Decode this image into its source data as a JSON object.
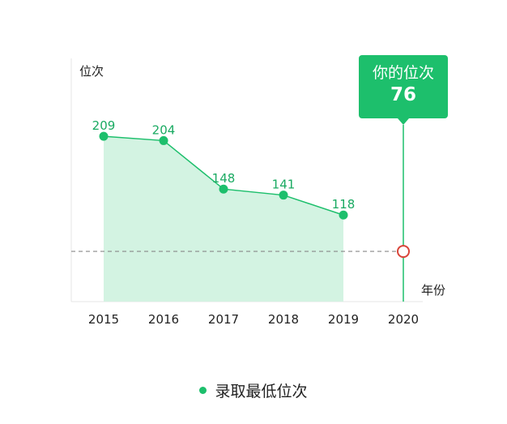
{
  "chart_data": {
    "type": "area",
    "ylabel": "位次",
    "xlabel": "年份",
    "categories": [
      "2015",
      "2016",
      "2017",
      "2018",
      "2019",
      "2020"
    ],
    "series": [
      {
        "name": "录取最低位次",
        "x": [
          "2015",
          "2016",
          "2017",
          "2018",
          "2019"
        ],
        "values": [
          209,
          204,
          148,
          141,
          118
        ]
      }
    ],
    "highlight": {
      "x": "2020",
      "label": "你的位次",
      "value": 76
    },
    "ylim": [
      18,
      299
    ],
    "legend_position": "bottom-center",
    "colors": {
      "line": "#1dbf6c",
      "area": "#d3f3e2",
      "marker_highlight": "#d9453a",
      "reference_line": "#888888"
    }
  }
}
